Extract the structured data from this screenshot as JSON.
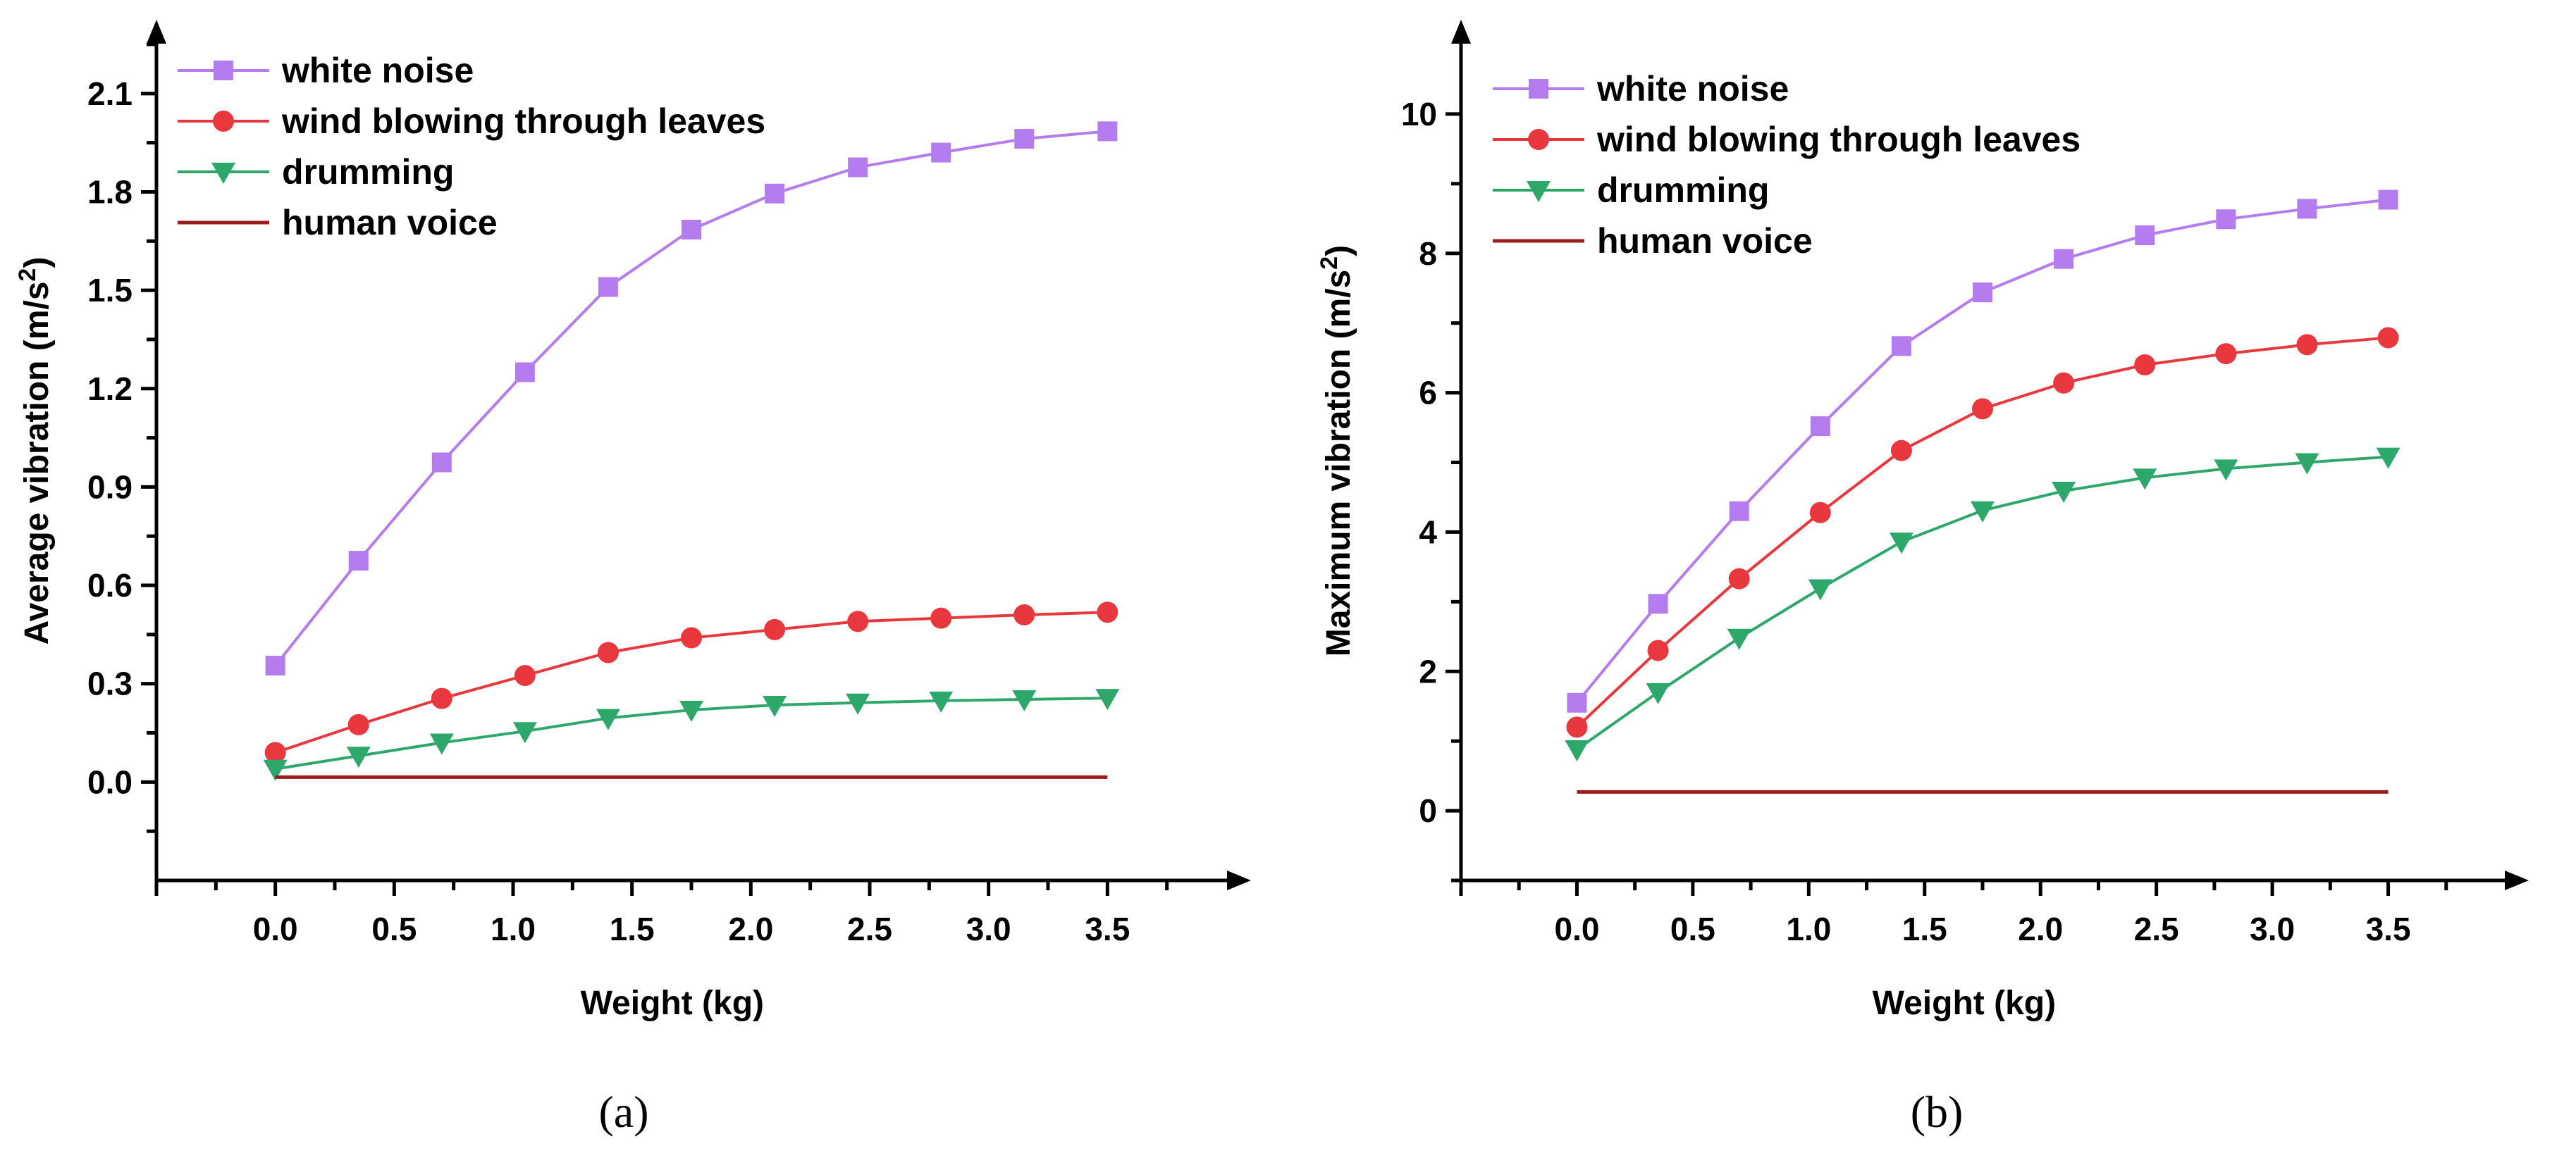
{
  "series_style": [
    {
      "name": "white noise",
      "color": "#b57cf0",
      "marker": "square"
    },
    {
      "name": "wind blowing through leaves",
      "color": "#e8383d",
      "marker": "circle"
    },
    {
      "name": "drumming",
      "color": "#2ea86a",
      "marker": "triangle-down"
    },
    {
      "name": "human voice",
      "color": "#9b1c1c",
      "marker": "none"
    }
  ],
  "chart_data": [
    {
      "type": "line",
      "panel_label": "(a)",
      "xlabel": "Weight (kg)",
      "ylabel_main": "Average vibration (m/s",
      "ylabel_sup": "2",
      "ylabel_close": ")",
      "xlim": [
        -0.5,
        4.0
      ],
      "ylim": [
        -0.3,
        2.25
      ],
      "xticks": [
        "0.0",
        "0.5",
        "1.0",
        "1.5",
        "2.0",
        "2.5",
        "3.0",
        "3.5"
      ],
      "yticks": [
        "0.0",
        "0.3",
        "0.6",
        "0.9",
        "1.2",
        "1.5",
        "1.8",
        "2.1"
      ],
      "legend_position": "top-left",
      "x": [
        0,
        0.35,
        0.7,
        1.05,
        1.4,
        1.75,
        2.1,
        2.45,
        2.8,
        3.15,
        3.5
      ],
      "series": [
        {
          "name": "white noise",
          "values": [
            0.355,
            0.675,
            0.975,
            1.25,
            1.51,
            1.685,
            1.795,
            1.875,
            1.92,
            1.962,
            1.985
          ]
        },
        {
          "name": "wind blowing through leaves",
          "values": [
            0.09,
            0.175,
            0.255,
            0.325,
            0.395,
            0.44,
            0.465,
            0.49,
            0.5,
            0.51,
            0.518
          ]
        },
        {
          "name": "drumming",
          "values": [
            0.04,
            0.08,
            0.12,
            0.155,
            0.195,
            0.22,
            0.235,
            0.242,
            0.248,
            0.252,
            0.256
          ]
        },
        {
          "name": "human voice",
          "values": [
            0.015,
            0.015,
            0.015,
            0.015,
            0.015,
            0.015,
            0.015,
            0.015,
            0.015,
            0.015,
            0.015
          ]
        }
      ]
    },
    {
      "type": "line",
      "panel_label": "(b)",
      "xlabel": "Weight (kg)",
      "ylabel_main": "Maximum vibration (m/s",
      "ylabel_sup": "2",
      "ylabel_close": ")",
      "xlim": [
        -0.5,
        4.0
      ],
      "ylim": [
        -1.0,
        11.0
      ],
      "xticks": [
        "0.0",
        "0.5",
        "1.0",
        "1.5",
        "2.0",
        "2.5",
        "3.0",
        "3.5"
      ],
      "yticks": [
        "0",
        "2",
        "4",
        "6",
        "8",
        "10"
      ],
      "legend_position": "top-left",
      "x": [
        0,
        0.35,
        0.7,
        1.05,
        1.4,
        1.75,
        2.1,
        2.45,
        2.8,
        3.15,
        3.5
      ],
      "series": [
        {
          "name": "white noise",
          "values": [
            1.55,
            2.97,
            4.3,
            5.52,
            6.67,
            7.44,
            7.92,
            8.26,
            8.49,
            8.64,
            8.77
          ]
        },
        {
          "name": "wind blowing through leaves",
          "values": [
            1.2,
            2.3,
            3.33,
            4.28,
            5.17,
            5.77,
            6.14,
            6.4,
            6.56,
            6.69,
            6.79
          ]
        },
        {
          "name": "drumming",
          "values": [
            0.88,
            1.7,
            2.48,
            3.19,
            3.86,
            4.31,
            4.59,
            4.78,
            4.91,
            5.0,
            5.08
          ]
        },
        {
          "name": "human voice",
          "values": [
            0.27,
            0.27,
            0.27,
            0.27,
            0.27,
            0.27,
            0.27,
            0.27,
            0.27,
            0.27,
            0.27
          ]
        }
      ]
    }
  ]
}
